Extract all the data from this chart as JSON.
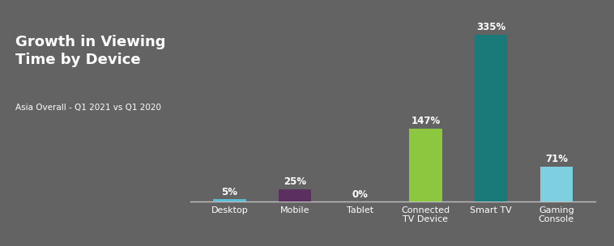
{
  "categories": [
    "Desktop",
    "Mobile",
    "Tablet",
    "Connected\nTV Device",
    "Smart TV",
    "Gaming\nConsole"
  ],
  "values": [
    5,
    25,
    0,
    147,
    335,
    71
  ],
  "bar_colors": [
    "#5bbcd6",
    "#5b3060",
    "#888888",
    "#8dc63f",
    "#1a7a7a",
    "#7ecfe0"
  ],
  "value_labels": [
    "5%",
    "25%",
    "0%",
    "147%",
    "335%",
    "71%"
  ],
  "title": "Growth in Viewing\nTime by Device",
  "subtitle": "Asia Overall - Q1 2021 vs Q1 2020",
  "background_color": "#636363",
  "text_color": "#ffffff",
  "bar_width": 0.5,
  "ylim": [
    0,
    380
  ],
  "title_fontsize": 13,
  "subtitle_fontsize": 7.5,
  "label_fontsize": 8.5,
  "tick_fontsize": 8
}
